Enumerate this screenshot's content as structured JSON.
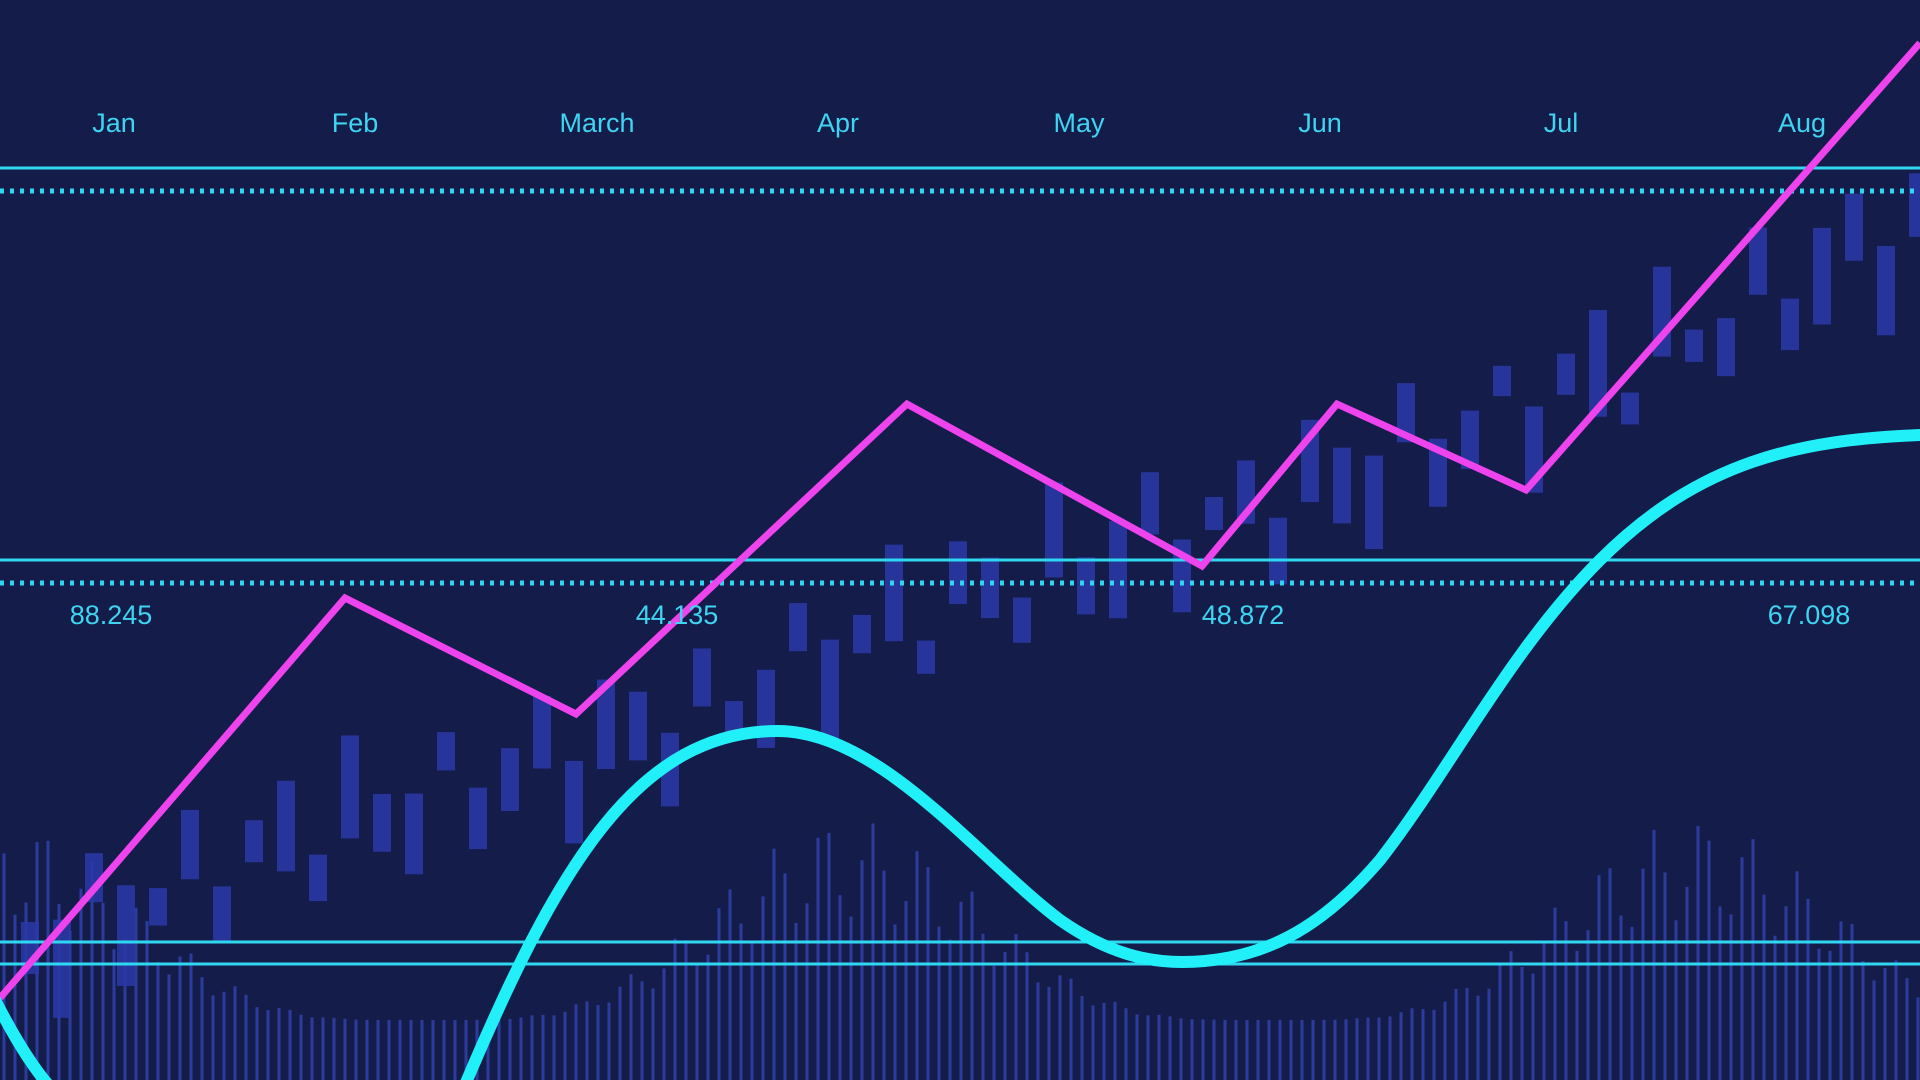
{
  "chart_data": {
    "type": "line",
    "categories": [
      "Jan",
      "Feb",
      "March",
      "Apr",
      "May",
      "Jun",
      "Jul",
      "Aug"
    ],
    "annotations": [
      "88.245",
      "44.135",
      "48.872",
      "67.098"
    ]
  }
}
